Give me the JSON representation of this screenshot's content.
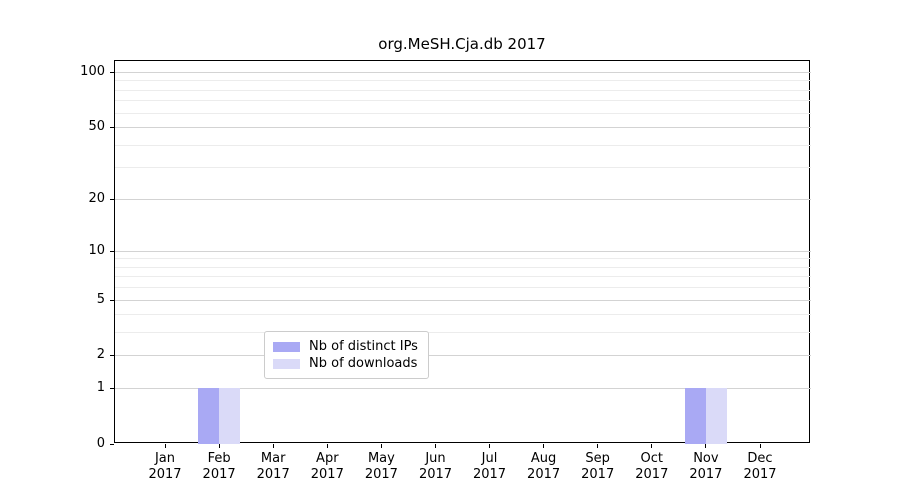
{
  "chart_data": {
    "type": "bar",
    "title": "org.MeSH.Cja.db 2017",
    "categories": [
      "Jan 2017",
      "Feb 2017",
      "Mar 2017",
      "Apr 2017",
      "May 2017",
      "Jun 2017",
      "Jul 2017",
      "Aug 2017",
      "Sep 2017",
      "Oct 2017",
      "Nov 2017",
      "Dec 2017"
    ],
    "series": [
      {
        "name": "Nb of distinct IPs",
        "color": "#a9a9f4",
        "values": [
          0,
          1,
          0,
          0,
          0,
          0,
          0,
          0,
          0,
          0,
          1,
          0
        ]
      },
      {
        "name": "Nb of downloads",
        "color": "#dadaf8",
        "values": [
          0,
          1,
          0,
          0,
          0,
          0,
          0,
          0,
          0,
          0,
          1,
          0
        ]
      }
    ],
    "y_axis": {
      "scale": "log1p",
      "major_ticks": [
        0,
        1,
        2,
        5,
        10,
        20,
        50,
        100
      ],
      "minor_ticks": [
        3,
        4,
        6,
        7,
        8,
        9,
        30,
        40,
        60,
        70,
        80,
        90
      ],
      "ylim": [
        0,
        115
      ]
    },
    "legend": {
      "position": "bottom-center",
      "entries": [
        "Nb of distinct IPs",
        "Nb of downloads"
      ]
    },
    "grid": true,
    "colors": {
      "major_grid": "#d3d3d3",
      "minor_grid": "#ececec",
      "spine": "#000000",
      "background": "#ffffff"
    }
  }
}
